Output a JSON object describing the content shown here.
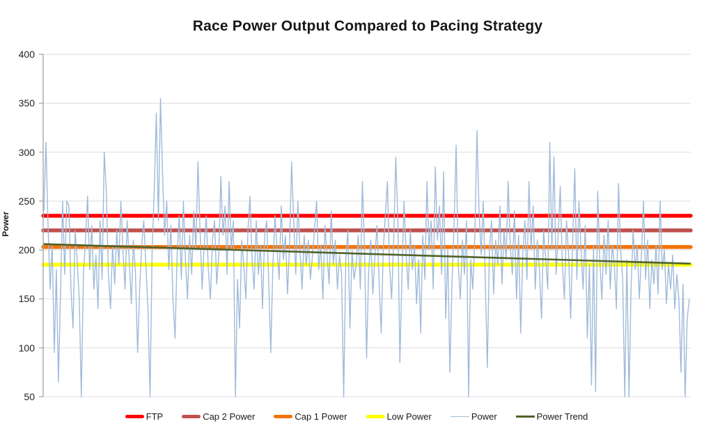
{
  "title": "Race Power Output Compared to Pacing Strategy",
  "colors": {
    "background": "#ffffff",
    "title_text": "#171717",
    "tick_text": "#222222",
    "gridline": "#e3e3e3",
    "axis_line": "#a8a8a8",
    "ftp": "#fe0000",
    "cap2": "#c0504d",
    "cap1": "#f37309",
    "low": "#ffff00",
    "power": "#9fbada",
    "trend": "#4f6228"
  },
  "chart_data": {
    "type": "line",
    "title": "Race Power Output Compared to Pacing Strategy",
    "xlabel": "",
    "ylabel": "Power",
    "ylim": [
      50,
      400
    ],
    "yticks": [
      400,
      350,
      300,
      250,
      200,
      150,
      100,
      50
    ],
    "x_axis_labels_visible": false,
    "grid": "horizontal",
    "legend_position": "bottom-center",
    "series": [
      {
        "name": "FTP",
        "type": "hline",
        "value": 235,
        "color": "#fe0000",
        "stroke_width": 5.5
      },
      {
        "name": "Cap 2 Power",
        "type": "hline",
        "value": 220,
        "color": "#c0504d",
        "stroke_width": 5.5
      },
      {
        "name": "Cap 1 Power",
        "type": "hline",
        "value": 203,
        "color": "#f37309",
        "stroke_width": 5.5
      },
      {
        "name": "Low Power",
        "type": "hline",
        "value": 185,
        "color": "#ffff00",
        "stroke_width": 5.5
      },
      {
        "name": "Power",
        "type": "line",
        "color": "#9fbada",
        "stroke_width": 1.4,
        "values": [
          240,
          310,
          225,
          160,
          205,
          95,
          180,
          65,
          155,
          250,
          175,
          250,
          245,
          160,
          120,
          220,
          190,
          150,
          50,
          175,
          210,
          255,
          180,
          225,
          160,
          195,
          140,
          230,
          170,
          300,
          260,
          175,
          140,
          205,
          165,
          220,
          185,
          250,
          200,
          160,
          230,
          190,
          145,
          210,
          175,
          95,
          160,
          205,
          230,
          185,
          140,
          50,
          200,
          260,
          340,
          230,
          355,
          280,
          215,
          250,
          180,
          225,
          150,
          110,
          195,
          235,
          170,
          250,
          190,
          150,
          215,
          175,
          240,
          200,
          290,
          220,
          160,
          205,
          235,
          180,
          150,
          210,
          230,
          165,
          195,
          275,
          215,
          245,
          175,
          270,
          200,
          230,
          50,
          170,
          120,
          210,
          185,
          150,
          220,
          255,
          190,
          160,
          230,
          175,
          205,
          140,
          215,
          230,
          165,
          95,
          185,
          235,
          200,
          170,
          245,
          190,
          215,
          155,
          205,
          290,
          230,
          175,
          250,
          200,
          160,
          215,
          185,
          210,
          170,
          195,
          220,
          250,
          180,
          205,
          150,
          225,
          195,
          165,
          240,
          185,
          210,
          160,
          195,
          175,
          50,
          190,
          220,
          120,
          200,
          170,
          185,
          215,
          160,
          270,
          200,
          90,
          180,
          210,
          155,
          195,
          225,
          170,
          115,
          200,
          235,
          270,
          185,
          150,
          210,
          295,
          230,
          85,
          175,
          250,
          195,
          160,
          220,
          180,
          205,
          145,
          190,
          115,
          215,
          170,
          270,
          200,
          230,
          160,
          285,
          210,
          245,
          175,
          280,
          130,
          200,
          75,
          165,
          225,
          307,
          185,
          150,
          210,
          175,
          230,
          50,
          190,
          160,
          215,
          322,
          240,
          195,
          250,
          170,
          80,
          200,
          230,
          155,
          210,
          185,
          245,
          165,
          220,
          190,
          270,
          205,
          175,
          240,
          150,
          215,
          115,
          195,
          230,
          170,
          270,
          200,
          245,
          160,
          210,
          180,
          130,
          220,
          190,
          160,
          310,
          200,
          295,
          175,
          215,
          265,
          185,
          150,
          230,
          195,
          130,
          210,
          283,
          170,
          250,
          200,
          160,
          225,
          110,
          185,
          62,
          205,
          55,
          260,
          190,
          150,
          215,
          175,
          230,
          160,
          205,
          185,
          140,
          268,
          200,
          170,
          50,
          190,
          50,
          160,
          220,
          180,
          205,
          150,
          195,
          250,
          170,
          210,
          140,
          190,
          165,
          205,
          155,
          250,
          180,
          200,
          145,
          185,
          160,
          195,
          140,
          175,
          150,
          75,
          165,
          50,
          130,
          150
        ]
      },
      {
        "name": "Power Trend",
        "type": "trendline",
        "start_value": 206,
        "end_value": 186,
        "color": "#4f6228",
        "stroke_width": 2.6
      }
    ]
  }
}
